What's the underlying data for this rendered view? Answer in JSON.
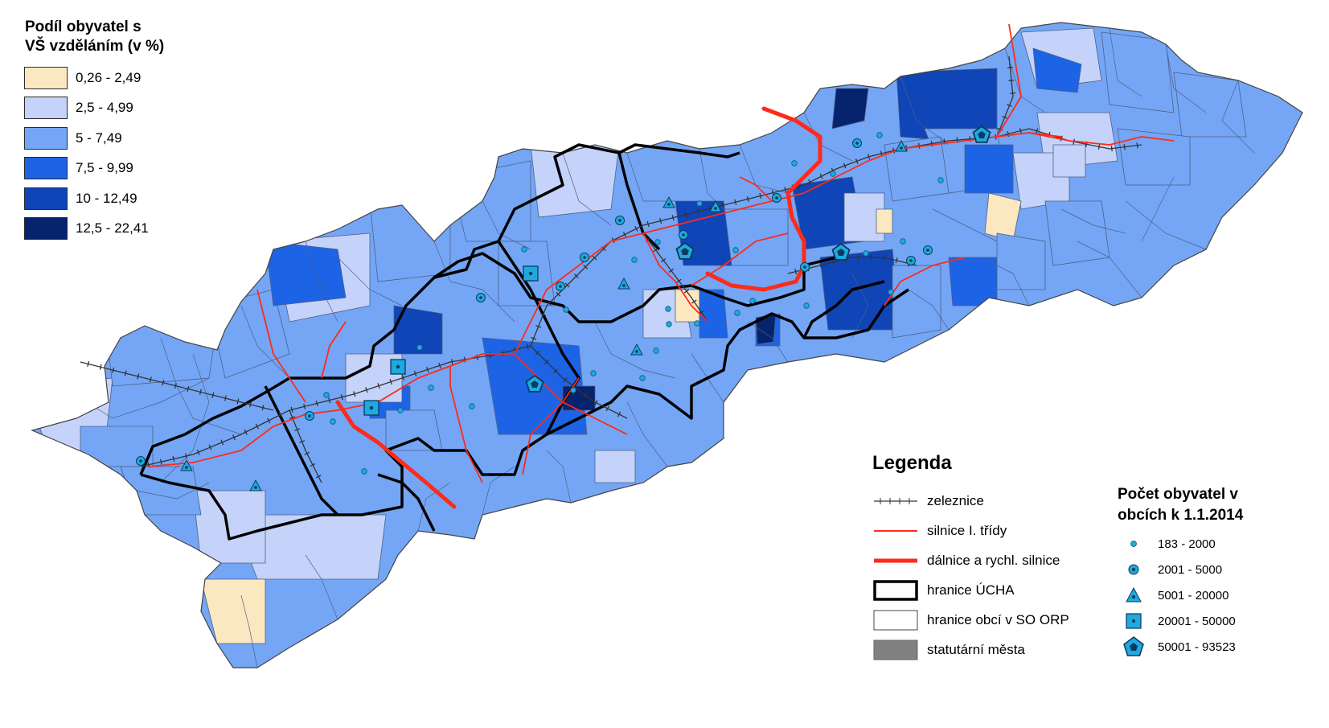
{
  "colors": {
    "class1": "#fbe8c0",
    "class2": "#c5d3fa",
    "class3": "#74a6f5",
    "class4": "#1d63e6",
    "class5": "#0f45b6",
    "class6": "#06236e",
    "rail": "#333333",
    "road": "#ff2a1a",
    "highway": "#ff2a1a",
    "border": "#000000",
    "symbol_fill": "#1ea9e0"
  },
  "choropleth_legend": {
    "title_line1": "Podíl obyvatel s",
    "title_line2": "VŠ vzděláním (v %)",
    "classes": [
      {
        "label": "0,26 - 2,49",
        "color": "#fbe8c0"
      },
      {
        "label": "2,5 - 4,99",
        "color": "#c5d3fa"
      },
      {
        "label": "5 - 7,49",
        "color": "#74a6f5"
      },
      {
        "label": "7,5 - 9,99",
        "color": "#1d63e6"
      },
      {
        "label": "10 - 12,49",
        "color": "#0f45b6"
      },
      {
        "label": "12,5 - 22,41",
        "color": "#06236e"
      }
    ]
  },
  "legend": {
    "title": "Legenda",
    "items": [
      {
        "label": "zeleznice",
        "icon": "railway-icon"
      },
      {
        "label": "silnice I. třídy",
        "icon": "road-icon"
      },
      {
        "label": "dálnice a rychl. silnice",
        "icon": "highway-icon"
      },
      {
        "label": "hranice ÚCHA",
        "icon": "thick-border-icon"
      },
      {
        "label": "hranice obcí v SO ORP",
        "icon": "thin-border-icon"
      },
      {
        "label": "statutární města",
        "icon": "grey-fill-icon",
        "color": "#808080"
      }
    ]
  },
  "population_legend": {
    "title_line1": "Počet obyvatel v",
    "title_line2": "obcích k 1.1.2014",
    "items": [
      {
        "label": "183 - 2000",
        "icon": "small-dot-icon"
      },
      {
        "label": "2001 - 5000",
        "icon": "ringed-dot-icon"
      },
      {
        "label": "5001 - 20000",
        "icon": "triangle-icon"
      },
      {
        "label": "20001 - 50000",
        "icon": "square-icon"
      },
      {
        "label": "50001 - 93523",
        "icon": "pentagon-icon"
      }
    ]
  },
  "map": {
    "municipalities": [
      {
        "class": 2
      },
      {
        "class": 3
      },
      {
        "class": 3
      },
      {
        "class": 2
      },
      {
        "class": 3
      },
      {
        "class": 4
      },
      {
        "class": 3
      },
      {
        "class": 2
      },
      {
        "class": 6
      },
      {
        "class": 5
      },
      {
        "class": 3
      },
      {
        "class": 2
      },
      {
        "class": 3
      },
      {
        "class": 4
      },
      {
        "class": 3
      },
      {
        "class": 2
      },
      {
        "class": 3
      },
      {
        "class": 5
      },
      {
        "class": 3
      },
      {
        "class": 2
      },
      {
        "class": 3
      },
      {
        "class": 1
      },
      {
        "class": 4
      },
      {
        "class": 3
      },
      {
        "class": 2
      },
      {
        "class": 5
      },
      {
        "class": 3
      },
      {
        "class": 4
      },
      {
        "class": 2
      },
      {
        "class": 1
      },
      {
        "class": 3
      },
      {
        "class": 5
      },
      {
        "class": 4
      },
      {
        "class": 6
      },
      {
        "class": 5
      },
      {
        "class": 4
      },
      {
        "class": 3
      },
      {
        "class": 4
      },
      {
        "class": 6
      },
      {
        "class": 3
      },
      {
        "class": 2
      },
      {
        "class": 1
      },
      {
        "class": 2
      },
      {
        "class": 4
      },
      {
        "class": 2
      },
      {
        "class": 3
      },
      {
        "class": 2
      },
      {
        "class": 1
      },
      {
        "class": 3
      },
      {
        "class": 2
      }
    ],
    "settlements": [
      {
        "type": "pentagon"
      },
      {
        "type": "pentagon"
      },
      {
        "type": "pentagon"
      },
      {
        "type": "pentagon"
      },
      {
        "type": "square"
      },
      {
        "type": "square"
      },
      {
        "type": "square"
      },
      {
        "type": "triangle"
      },
      {
        "type": "triangle"
      },
      {
        "type": "triangle"
      },
      {
        "type": "triangle"
      },
      {
        "type": "triangle"
      },
      {
        "type": "triangle"
      },
      {
        "type": "triangle"
      },
      {
        "type": "ring"
      },
      {
        "type": "ring"
      },
      {
        "type": "ring"
      },
      {
        "type": "ring"
      },
      {
        "type": "ring"
      },
      {
        "type": "ring"
      },
      {
        "type": "ring"
      },
      {
        "type": "ring"
      },
      {
        "type": "ring"
      },
      {
        "type": "ring"
      },
      {
        "type": "ring"
      },
      {
        "type": "ring"
      },
      {
        "type": "dot"
      },
      {
        "type": "dot"
      },
      {
        "type": "dot"
      },
      {
        "type": "dot"
      },
      {
        "type": "dot"
      },
      {
        "type": "dot"
      },
      {
        "type": "dot"
      },
      {
        "type": "dot"
      },
      {
        "type": "dot"
      },
      {
        "type": "dot"
      },
      {
        "type": "dot"
      },
      {
        "type": "dot"
      },
      {
        "type": "dot"
      },
      {
        "type": "dot"
      },
      {
        "type": "dot"
      },
      {
        "type": "dot"
      },
      {
        "type": "dot"
      },
      {
        "type": "dot"
      },
      {
        "type": "dot"
      },
      {
        "type": "dot"
      },
      {
        "type": "dot"
      },
      {
        "type": "dot"
      },
      {
        "type": "dot"
      },
      {
        "type": "dot"
      },
      {
        "type": "dot"
      },
      {
        "type": "dot"
      },
      {
        "type": "dot"
      },
      {
        "type": "dot"
      },
      {
        "type": "dot"
      },
      {
        "type": "dot"
      }
    ]
  }
}
